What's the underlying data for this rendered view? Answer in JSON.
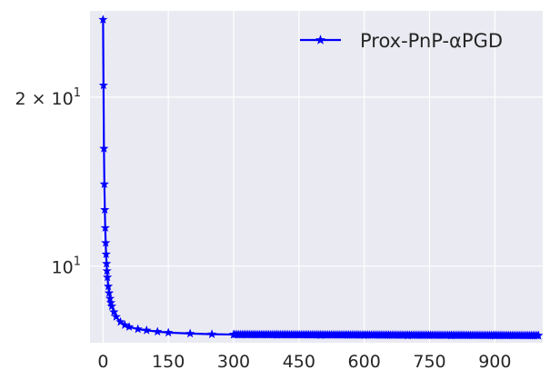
{
  "chart_data": {
    "type": "line",
    "title": "",
    "xlabel": "",
    "ylabel": "",
    "y_scale": "log",
    "grid": true,
    "legend_position": "top-right",
    "xlim": [
      -30,
      1010
    ],
    "ylim": [
      7.3,
      28.5
    ],
    "x_ticks": [
      0,
      150,
      300,
      450,
      600,
      750,
      900
    ],
    "x_tick_labels": [
      "0",
      "150",
      "300",
      "450",
      "600",
      "750",
      "900"
    ],
    "y_ticks": [
      20,
      10
    ],
    "y_tick_labels": [
      "2 × 10",
      "10"
    ],
    "y_tick_exponents": [
      "1",
      "1"
    ],
    "series": [
      {
        "name": "Prox-PnP-αPGD",
        "color": "#0000ff",
        "marker": "star",
        "x": [
          0,
          1,
          2,
          3,
          4,
          5,
          6,
          7,
          8,
          9,
          10,
          12,
          14,
          16,
          18,
          20,
          25,
          30,
          40,
          50,
          60,
          80,
          100,
          125,
          150,
          200,
          250,
          300,
          400,
          500,
          600,
          700,
          800,
          900,
          1000
        ],
        "y": [
          27.5,
          21.0,
          16.2,
          14.0,
          12.6,
          11.7,
          11.0,
          10.5,
          10.1,
          9.8,
          9.55,
          9.2,
          8.95,
          8.75,
          8.6,
          8.48,
          8.28,
          8.12,
          7.95,
          7.85,
          7.79,
          7.72,
          7.68,
          7.64,
          7.61,
          7.58,
          7.56,
          7.55,
          7.54,
          7.53,
          7.53,
          7.52,
          7.52,
          7.52,
          7.52
        ]
      }
    ]
  }
}
